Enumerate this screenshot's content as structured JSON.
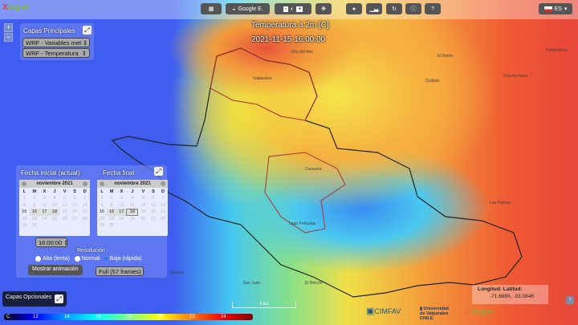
{
  "app": {
    "logo": "Xingue",
    "logo_sub": "La Dinastía"
  },
  "toolbar": {
    "layers_icon": "grid-icon",
    "basemap": "Google E.",
    "zoom_icon": "opacity-icon",
    "locate_icon": "crosshair-icon",
    "drop_icon": "drop-icon",
    "chart_icon": "bar-chart-icon",
    "refresh_icon": "refresh-icon",
    "info_icon": "info-icon",
    "help_icon": "help-icon",
    "language": "ES"
  },
  "layers": {
    "title": "Capas Principales",
    "layer1": "WRF - Variables met",
    "layer2": "WRF - Temperatura",
    "optional": "Capas Opcionales"
  },
  "map": {
    "title": "Temperatura a 2m [C]",
    "datetime": "2021-11-15 16:00:00",
    "places": [
      "Viña del Mar",
      "Valparaíso",
      "El Retiro",
      "Quilpué",
      "Villa Alemana",
      "Peñablanca",
      "Curauma",
      "Lago Peñuelas",
      "Las Palmas",
      "San Juan",
      "El Rincón",
      "Quintay"
    ],
    "scale": "5 km"
  },
  "dates": {
    "start_label": "Fecha inicial (actual)",
    "end_label": "Fecha final",
    "month": "noviembre 2021",
    "weekdays": [
      "L",
      "M",
      "X",
      "J",
      "V",
      "S",
      "D"
    ],
    "time": "16:00:00",
    "resolution_label": "Resolución :",
    "res_options": [
      "Alta (lenta)",
      "Normal",
      "Baja (rápida)"
    ],
    "res_selected": 2,
    "frames": "Full (57 frames)",
    "show_button": "Mostrar animación"
  },
  "legend": {
    "unit": "C",
    "ticks": [
      "12",
      "14",
      "16",
      "18",
      "20",
      "22",
      "24"
    ],
    "colors": [
      "#000000",
      "#0000ff",
      "#00a0ff",
      "#00ffff",
      "#80ff80",
      "#ffff00",
      "#ff8000",
      "#ff0000",
      "#800000"
    ]
  },
  "coords": {
    "label": "Longitud:  Latitud:",
    "value": "-71.6689, -33.0846"
  },
  "logos": [
    "CIMFAV",
    "Universidad de Valparaíso CHILE",
    "Xingue"
  ]
}
